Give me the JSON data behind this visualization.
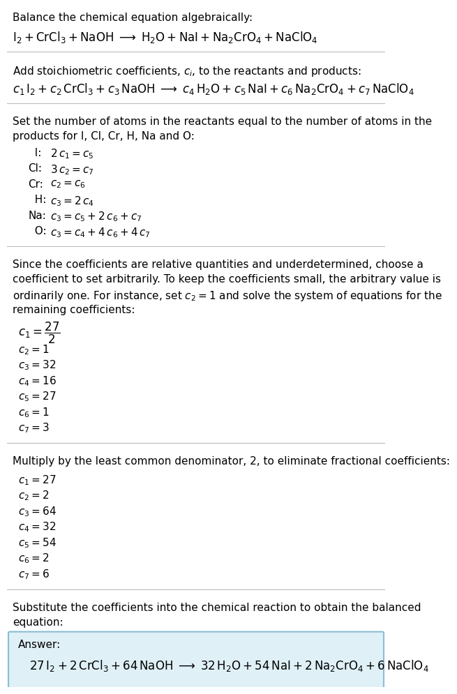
{
  "title_line": "Balance the chemical equation algebraically:",
  "eq1": "$\\mathrm{I_2 + CrCl_3 + NaOH} \\;\\longrightarrow\\; \\mathrm{H_2O + NaI + Na_2CrO_4 + NaClO_4}$",
  "section2_title": "Add stoichiometric coefficients, $c_i$, to the reactants and products:",
  "eq2": "$c_1\\,\\mathrm{I_2} + c_2\\,\\mathrm{CrCl_3} + c_3\\,\\mathrm{NaOH} \\;\\longrightarrow\\; c_4\\,\\mathrm{H_2O} + c_5\\,\\mathrm{NaI} + c_6\\,\\mathrm{Na_2CrO_4} + c_7\\,\\mathrm{NaClO_4}$",
  "section3_title1": "Set the number of atoms in the reactants equal to the number of atoms in the",
  "section3_title2": "products for I, Cl, Cr, H, Na and O:",
  "equations": [
    [
      "  I:",
      "$2\\,c_1 = c_5$"
    ],
    [
      "Cl:",
      "$3\\,c_2 = c_7$"
    ],
    [
      "Cr:",
      "$c_2 = c_6$"
    ],
    [
      "  H:",
      "$c_3 = 2\\,c_4$"
    ],
    [
      "Na:",
      "$c_3 = c_5 + 2\\,c_6 + c_7$"
    ],
    [
      "  O:",
      "$c_3 = c_4 + 4\\,c_6 + 4\\,c_7$"
    ]
  ],
  "section4_title1": "Since the coefficients are relative quantities and underdetermined, choose a",
  "section4_title2": "coefficient to set arbitrarily. To keep the coefficients small, the arbitrary value is",
  "section4_title3": "ordinarily one. For instance, set $c_2 = 1$ and solve the system of equations for the",
  "section4_title4": "remaining coefficients:",
  "coeffs1": [
    [
      "$c_1 = \\dfrac{27}{2}$",
      true
    ],
    [
      "$c_2 = 1$",
      false
    ],
    [
      "$c_3 = 32$",
      false
    ],
    [
      "$c_4 = 16$",
      false
    ],
    [
      "$c_5 = 27$",
      false
    ],
    [
      "$c_6 = 1$",
      false
    ],
    [
      "$c_7 = 3$",
      false
    ]
  ],
  "section5_title": "Multiply by the least common denominator, 2, to eliminate fractional coefficients:",
  "coeffs2": [
    "$c_1 = 27$",
    "$c_2 = 2$",
    "$c_3 = 64$",
    "$c_4 = 32$",
    "$c_5 = 54$",
    "$c_6 = 2$",
    "$c_7 = 6$"
  ],
  "section6_title1": "Substitute the coefficients into the chemical reaction to obtain the balanced",
  "section6_title2": "equation:",
  "answer_label": "Answer:",
  "answer_eq": "$27\\,\\mathrm{I_2} + 2\\,\\mathrm{CrCl_3} + 64\\,\\mathrm{NaOH} \\;\\longrightarrow\\; 32\\,\\mathrm{H_2O} + 54\\,\\mathrm{NaI} + 2\\,\\mathrm{Na_2CrO_4} + 6\\,\\mathrm{NaClO_4}$",
  "bg_color": "#ffffff",
  "answer_box_color": "#dff0f7",
  "answer_box_border": "#8bbdd4",
  "text_color": "#000000",
  "separator_color": "#bbbbbb",
  "font_size": 11,
  "eq_font_size": 12
}
